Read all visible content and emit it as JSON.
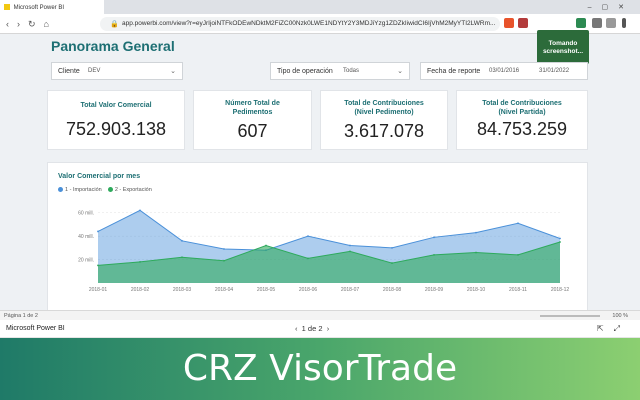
{
  "browser": {
    "tab_title": "Microsoft Power BI",
    "url": "app.powerbi.com/view?r=eyJrIjoiNTFkODEwNDktM2FiZC00Nzk0LWE1NDYtY2Y3MDJiYzg1ZDZkIiwidCI6IjVhM2MyYTI2LWRm..."
  },
  "report": {
    "title": "Panorama General",
    "toast": "Tomando screenshot..."
  },
  "filters": {
    "cliente_label": "Cliente",
    "cliente_value": "DEV",
    "tipo_label": "Tipo de operación",
    "tipo_value": "Todas",
    "fecha_label": "Fecha de reporte",
    "fecha_from": "03/01/2016",
    "fecha_to": "31/01/2022"
  },
  "cards": [
    {
      "label": "Total Valor Comercial",
      "value": "752.903.138"
    },
    {
      "label": "Número Total de Pedimentos",
      "value": "607"
    },
    {
      "label": "Total de Contribuciones (Nivel Pedimento)",
      "value": "3.617.078"
    },
    {
      "label": "Total de Contribuciones (Nivel Partida)",
      "value": "84.753.259"
    }
  ],
  "chart_data": {
    "type": "area",
    "title": "Valor Comercial por mes",
    "x": [
      "2018-01",
      "2018-02",
      "2018-03",
      "2018-04",
      "2018-05",
      "2018-06",
      "2018-07",
      "2018-08",
      "2018-09",
      "2018-10",
      "2018-11",
      "2018-12"
    ],
    "yticks": [
      "20 mill.",
      "40 mill.",
      "60 mill."
    ],
    "ylim": [
      0,
      70
    ],
    "grid": true,
    "legend_position": "top-left",
    "series": [
      {
        "name": "1 - Importación",
        "color": "#4a90d9",
        "values": [
          44,
          62,
          36,
          29,
          28,
          40,
          32,
          30,
          39,
          43,
          51,
          38
        ]
      },
      {
        "name": "2 - Exportación",
        "color": "#2eaa5c",
        "values": [
          15,
          18,
          22,
          19,
          32,
          21,
          27,
          17,
          24,
          26,
          24,
          35
        ]
      }
    ]
  },
  "statusbar": {
    "page": "Página 1 de 2",
    "zoom": "100 %"
  },
  "footer": {
    "name": "Microsoft Power BI",
    "pager": "1 de 2"
  },
  "banner": {
    "title": "CRZ VisorTrade"
  }
}
